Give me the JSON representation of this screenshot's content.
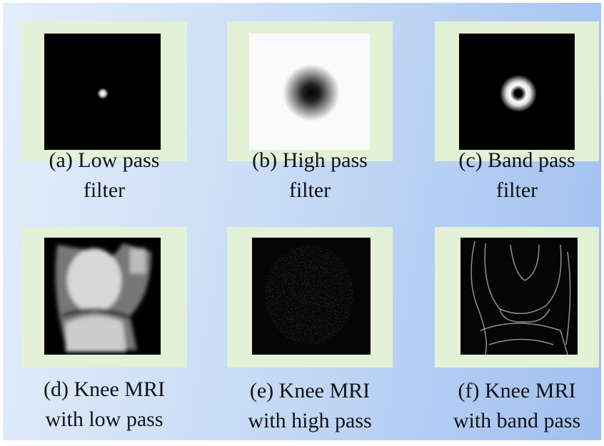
{
  "panels": [
    {
      "caption_lines": [
        "(a) Low pass",
        "filter"
      ]
    },
    {
      "caption_lines": [
        "(b) High pass",
        "filter"
      ]
    },
    {
      "caption_lines": [
        "(c) Band pass",
        "filter"
      ]
    },
    {
      "caption_lines": [
        "(d) Knee MRI",
        "with low pass"
      ]
    },
    {
      "caption_lines": [
        "(e) Knee MRI",
        "with high pass"
      ]
    },
    {
      "caption_lines": [
        "(f) Knee MRI",
        "with band pass"
      ]
    }
  ]
}
